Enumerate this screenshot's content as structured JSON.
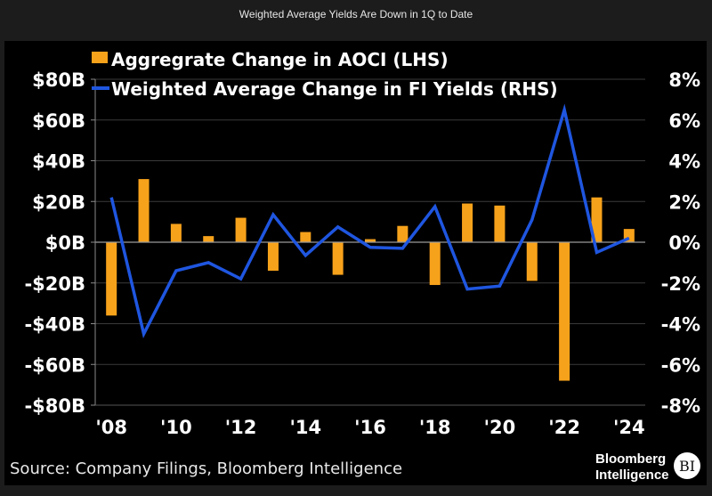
{
  "page": {
    "title": "Weighted Average Yields Are Down in 1Q to Date"
  },
  "footer": {
    "source": "Source: Company Filings, Bloomberg Intelligence",
    "brand_line1": "Bloomberg",
    "brand_line2": "Intelligence",
    "logo_text": "BI"
  },
  "colors": {
    "bar": "#f7a21b",
    "line": "#1f56e0",
    "grid": "#3a3a3a",
    "zero_line": "#9a9a9a",
    "background": "#000000"
  },
  "chart_data": {
    "type": "bar+line",
    "title": "Weighted Average Yields Are Down in 1Q to Date",
    "categories": [
      "'08",
      "'09",
      "'10",
      "'11",
      "'12",
      "'13",
      "'14",
      "'15",
      "'16",
      "'17",
      "'18",
      "'19",
      "'20",
      "'21",
      "'22",
      "'23",
      "'24"
    ],
    "x_tick_labels": [
      "'08",
      "'10",
      "'12",
      "'14",
      "'16",
      "'18",
      "'20",
      "'22",
      "'24"
    ],
    "legend": [
      "Aggregrate Change in AOCI (LHS)",
      "Weighted Average Change in FI Yields (RHS)"
    ],
    "legend_position": "top-left",
    "grid": true,
    "series": [
      {
        "name": "Aggregrate Change in AOCI (LHS)",
        "type": "bar",
        "axis": "left",
        "unit": "$B",
        "values": [
          -36,
          31,
          9,
          3,
          12,
          -14,
          5,
          -16,
          1.5,
          8,
          -21,
          19,
          18,
          -19,
          -68,
          22,
          6.5
        ]
      },
      {
        "name": "Weighted Average Change in FI Yields (RHS)",
        "type": "line",
        "axis": "right",
        "unit": "%",
        "values": [
          2.2,
          -4.5,
          -1.4,
          -1.0,
          -1.8,
          1.35,
          -0.65,
          0.75,
          -0.25,
          -0.3,
          1.75,
          -2.3,
          -2.15,
          1.1,
          6.5,
          -0.5,
          0.2
        ]
      }
    ],
    "left_axis": {
      "range": [
        -80,
        80
      ],
      "ticks": [
        80,
        60,
        40,
        20,
        0,
        -20,
        -40,
        -60,
        -80
      ],
      "tick_labels": [
        "$80B",
        "$60B",
        "$40B",
        "$20B",
        "$0B",
        "-$20B",
        "-$40B",
        "-$60B",
        "-$80B"
      ]
    },
    "right_axis": {
      "range": [
        -8,
        8
      ],
      "ticks": [
        8,
        6,
        4,
        2,
        0,
        -2,
        -4,
        -6,
        -8
      ],
      "tick_labels": [
        "8%",
        "6%",
        "4%",
        "2%",
        "0%",
        "-2%",
        "-4%",
        "-6%",
        "-8%"
      ]
    },
    "xlabel": "",
    "ylabel_left": "",
    "ylabel_right": ""
  }
}
